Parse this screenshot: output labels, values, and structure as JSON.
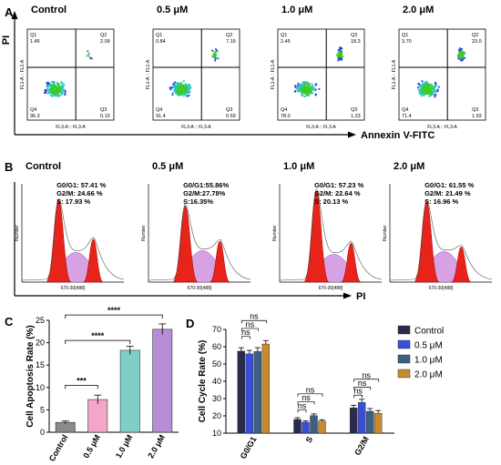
{
  "panel_letters": {
    "a": "A",
    "b": "B",
    "c": "C",
    "d": "D"
  },
  "flow_axes": {
    "y": "PI",
    "x": "Annexin V-FITC"
  },
  "cycle_axis": {
    "x": "PI"
  },
  "flow_panels": [
    {
      "title": "Control",
      "q1": "1.45",
      "q2": "2.09",
      "q3": "0.13",
      "q4": "96.3",
      "xlabel": "FL3-A :: FL3-A",
      "ylabel": "FL1-A :: FL1-A"
    },
    {
      "title": "0.5 μM",
      "q1": "0.84",
      "q2": "7.19",
      "q3": "0.59",
      "q4": "91.4",
      "xlabel": "FL3-A :: FL3-A",
      "ylabel": "FL1-A :: FL1-A"
    },
    {
      "title": "1.0 μM",
      "q1": "2.45",
      "q2": "18.3",
      "q3": "1.23",
      "q4": "78.0",
      "xlabel": "FL3-A :: FL3-A",
      "ylabel": "FL1-A :: FL1-A"
    },
    {
      "title": "2.0 μM",
      "q1": "3.70",
      "q2": "23.0",
      "q3": "1.93",
      "q4": "71.4",
      "xlabel": "FL3-A :: FL3-A",
      "ylabel": "FL1-A :: FL1-A"
    }
  ],
  "cycle_panels": [
    {
      "title": "Control",
      "g0g1": "G0/G1: 57.41 %",
      "g2m": "G2/M: 24.66 %",
      "s": "S: 17.93 %",
      "xlabel": "670-30[488]",
      "ylabel": "Number"
    },
    {
      "title": "0.5 μM",
      "g0g1": "G0/G1:55.86%",
      "g2m": "G2/M:27.78%",
      "s": "S:16.35%",
      "xlabel": "670-30[488]",
      "ylabel": "Number"
    },
    {
      "title": "1.0 μM",
      "g0g1": "G0/G1: 57.23 %",
      "g2m": "G2/M: 22.64 %",
      "s": "S: 20.13 %",
      "xlabel": "670-30[488]",
      "ylabel": "Number"
    },
    {
      "title": "2.0 μM",
      "g0g1": "G0/G1: 61.55 %",
      "g2m": "G2/M: 21.49 %",
      "s": "S: 16.96 %",
      "xlabel": "670-30[488]",
      "ylabel": "Number"
    }
  ],
  "chart_data": [
    {
      "type": "bar",
      "ylabel": "Cell Apoptosis Rate (%)",
      "categories": [
        "Control",
        "0.5 μM",
        "1.0 μM",
        "2.0 μM"
      ],
      "values": [
        2.2,
        7.3,
        18.3,
        23.0
      ],
      "errors": [
        0.3,
        1.0,
        0.9,
        1.2
      ],
      "colors": [
        "#8a8a8a",
        "#f4a6c9",
        "#7fcfc9",
        "#b58ed6"
      ],
      "ylim": [
        0,
        25
      ],
      "yticks": [
        0,
        5,
        10,
        15,
        20,
        25
      ],
      "significance": [
        {
          "from": 0,
          "to": 1,
          "label": "***"
        },
        {
          "from": 0,
          "to": 2,
          "label": "****"
        },
        {
          "from": 0,
          "to": 3,
          "label": "****"
        }
      ]
    },
    {
      "type": "bar",
      "ylabel": "Cell Cycle Rate (%)",
      "categories": [
        "G0/G1",
        "S",
        "G2/M"
      ],
      "ylim": [
        10,
        70
      ],
      "yticks": [
        10,
        20,
        30,
        40,
        50,
        60,
        70
      ],
      "series": [
        {
          "name": "Control",
          "color": "#2a2a4e",
          "values": [
            57.41,
            17.93,
            24.66
          ],
          "errors": [
            2.0,
            1.0,
            1.5
          ]
        },
        {
          "name": "0.5 μM",
          "color": "#3a4fd8",
          "values": [
            55.86,
            16.35,
            27.78
          ],
          "errors": [
            2.0,
            0.8,
            1.8
          ]
        },
        {
          "name": "1.0 μM",
          "color": "#3d5f82",
          "values": [
            57.23,
            20.13,
            22.64
          ],
          "errors": [
            2.2,
            1.0,
            1.6
          ]
        },
        {
          "name": "2.0 μM",
          "color": "#c88a2e",
          "values": [
            61.55,
            16.96,
            21.49
          ],
          "errors": [
            2.0,
            0.8,
            1.6
          ]
        }
      ],
      "significance_label": "ns"
    }
  ]
}
